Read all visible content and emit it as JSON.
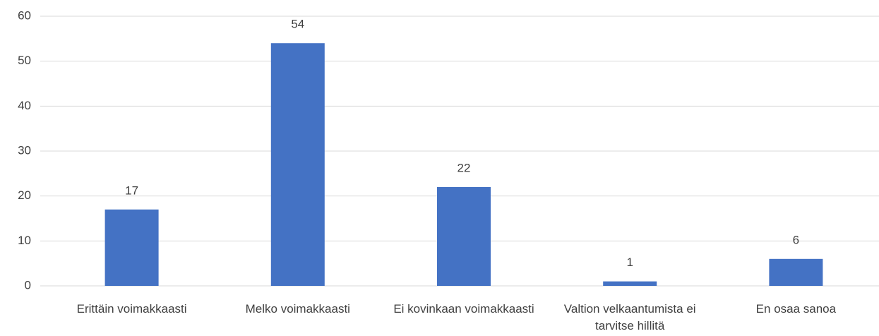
{
  "chart_data": {
    "type": "bar",
    "categories": [
      "Erittäin voimakkaasti",
      "Melko voimakkaasti",
      "Ei kovinkaan voimakkaasti",
      "Valtion velkaantumista ei tarvitse hillitä",
      "En osaa sanoa"
    ],
    "values": [
      17,
      54,
      22,
      1,
      6
    ],
    "color": "#4472c4",
    "ylim": [
      0,
      60
    ],
    "yticks": [
      0,
      10,
      20,
      30,
      40,
      50,
      60
    ],
    "grid": true
  }
}
